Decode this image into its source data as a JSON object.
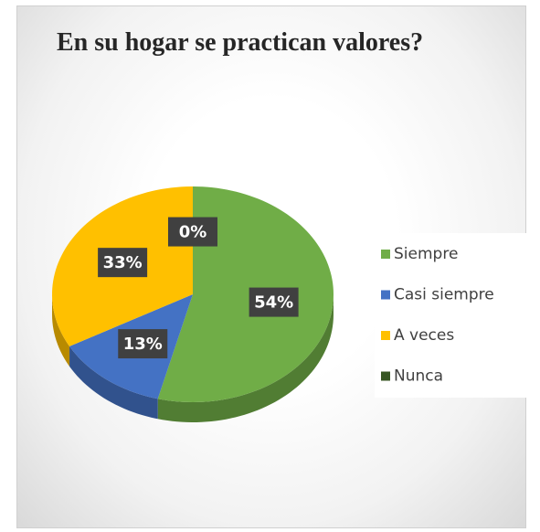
{
  "chart_data": {
    "type": "pie3d",
    "title": "En su hogar se practican valores?",
    "categories": [
      "Siempre",
      "Casi siempre",
      "A veces",
      "Nunca"
    ],
    "values": [
      54,
      13,
      33,
      0
    ],
    "value_labels": [
      "54%",
      "13%",
      "33%",
      "0%"
    ],
    "colors": [
      "#70ad47",
      "#4472c4",
      "#ffc000",
      "#375623"
    ],
    "legend": "right"
  }
}
